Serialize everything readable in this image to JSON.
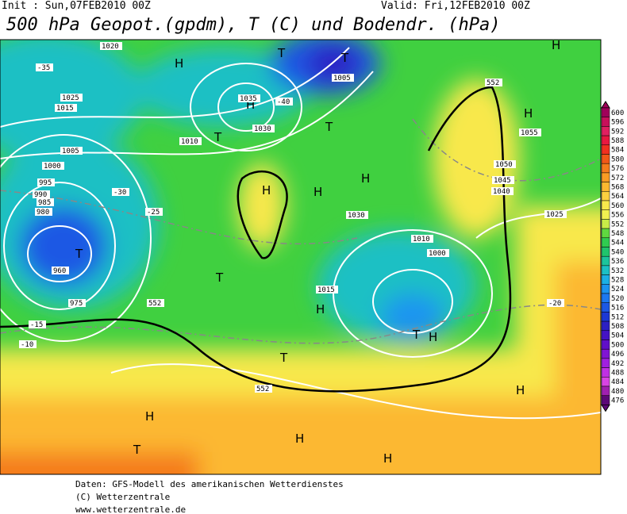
{
  "header": {
    "init": "Init : Sun,07FEB2010 00Z",
    "valid": "Valid: Fri,12FEB2010 00Z",
    "title": "500 hPa Geopot.(gpdm), T (C) und Bodendr. (hPa)"
  },
  "colorbar": {
    "levels": [
      600,
      596,
      592,
      588,
      584,
      580,
      576,
      572,
      568,
      564,
      560,
      556,
      552,
      548,
      544,
      540,
      536,
      532,
      528,
      524,
      520,
      516,
      512,
      508,
      504,
      500,
      496,
      492,
      488,
      484,
      480,
      476
    ],
    "colors": [
      "#a0005a",
      "#c8105a",
      "#e02060",
      "#e81840",
      "#f03020",
      "#f05818",
      "#f47c1c",
      "#f89c24",
      "#fcb830",
      "#fcd040",
      "#f8e84c",
      "#f0f050",
      "#c8ec48",
      "#60d840",
      "#30cc50",
      "#20c46c",
      "#1cc49c",
      "#1cc0c4",
      "#1cb0e4",
      "#1c94f0",
      "#1c78f0",
      "#1c58e4",
      "#1c38d4",
      "#2c20c4",
      "#4414c4",
      "#6010c8",
      "#8014d4",
      "#a020e0",
      "#c030e4",
      "#d844e4",
      "#a020b0",
      "#5c0878"
    ]
  },
  "map_labels": [
    "H",
    "H",
    "H",
    "T",
    "T",
    "T",
    "T",
    "H",
    "H",
    "T",
    "H",
    "H",
    "H",
    "T",
    "T",
    "H",
    "H",
    "H",
    "H",
    "T",
    "H",
    "T",
    "1020",
    "1025",
    "1015",
    "1010",
    "1005",
    "1000",
    "995",
    "990",
    "985",
    "980",
    "975",
    "960",
    "1030",
    "1035",
    "1005",
    "1050",
    "1045",
    "1040",
    "1055",
    "1025",
    "1030",
    "1015",
    "1000",
    "1010",
    "-35",
    "-30",
    "-25",
    "-40",
    "-20",
    "-15",
    "-10",
    "552",
    "552",
    "552"
  ],
  "footer": [
    "Daten: GFS-Modell des amerikanischen Wetterdienstes",
    "(C) Wetterzentrale",
    "www.wetterzentrale.de"
  ]
}
